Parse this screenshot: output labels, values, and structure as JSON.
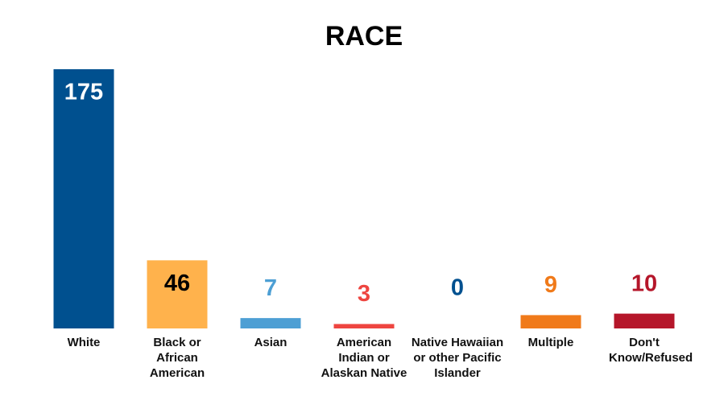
{
  "chart_data": {
    "type": "bar",
    "title": "RACE",
    "categories": [
      "White",
      "Black or African American",
      "Asian",
      "American Indian or Alaskan Native",
      "Native Hawaiian or other Pacific Islander",
      "Multiple",
      "Don't Know/Refused"
    ],
    "values": [
      175,
      46,
      7,
      3,
      0,
      9,
      10
    ],
    "colors": [
      "#00508f",
      "#ffb24c",
      "#4d9fd4",
      "#ee4540",
      "#00508f",
      "#f07a1a",
      "#b5162a"
    ],
    "value_label_colors": [
      "#ffffff",
      "#000000",
      "#4d9fd4",
      "#ee4540",
      "#00508f",
      "#f07a1a",
      "#b5162a"
    ],
    "grid": false
  }
}
